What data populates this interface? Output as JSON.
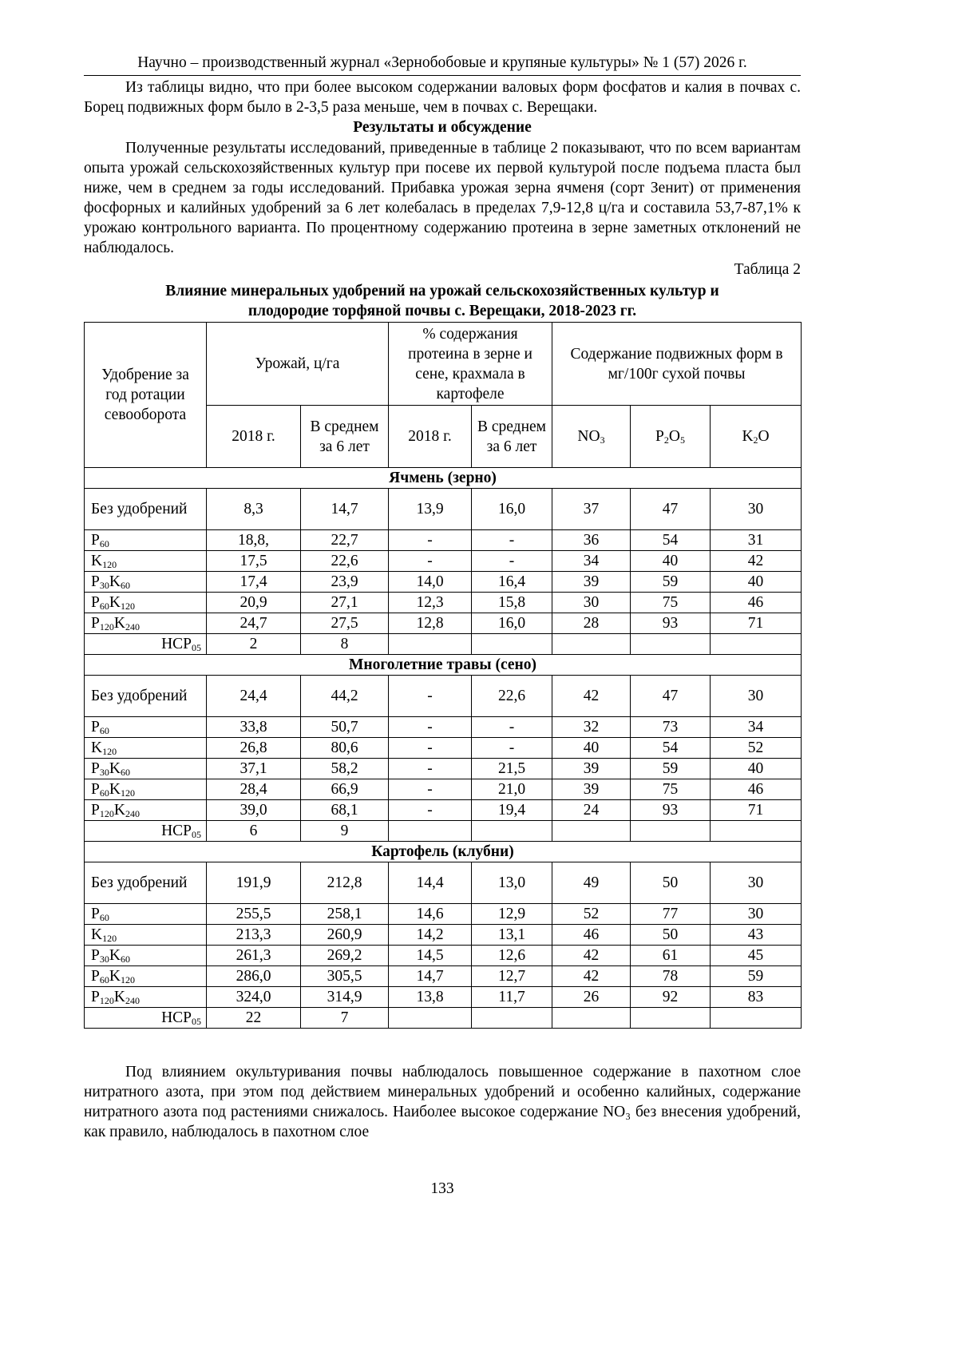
{
  "header": "Научно – производственный журнал «Зернобобовые и крупяные культуры» № 1 (57) 2026 г.",
  "intro": "Из таблицы видно, что при более высоком содержании валовых форм фосфатов и калия в почвах с. Борец подвижных форм было в 2-3,5 раза меньше, чем в почвах с. Верещаки.",
  "section_title": "Результаты и обсуждение",
  "results_para": "Полученные результаты исследований, приведенные в таблице 2 показывают, что по всем вариантам опыта урожай сельскохозяйственных культур при посеве их первой культурой после подъема пласта был ниже, чем в среднем за годы исследований. Прибавка урожая зерна ячменя (сорт Зенит) от применения фосфорных и калийных удобрений за 6 лет колебалась в пределах 7,9-12,8 ц/га и составила 53,7-87,1% к урожаю контрольного варианта. По процентному содержанию протеина в зерне заметных отклонений не наблюдалось.",
  "table_label": "Таблица 2",
  "table_title_1": "Влияние минеральных удобрений на урожай сельскохозяйственных культур и",
  "table_title_2": "плодородие торфяной почвы с. Верещаки, 2018-2023 гг.",
  "table": {
    "h_fert": "Удобрение за год ротации севооборота",
    "h_yield": "Урожай, ц/га",
    "h_protein": "% содержания протеина в зерне и сене, крахмала в картофеле",
    "h_mobile": "Содержание подвижных форм в мг/100г сухой почвы",
    "h_2018": "2018 г.",
    "h_avg": "В среднем за 6 лет",
    "h_no3": [
      [
        "NO",
        ""
      ],
      [
        "3",
        "s"
      ]
    ],
    "h_p2o5": [
      [
        "P",
        ""
      ],
      [
        "2",
        "s"
      ],
      [
        "O",
        ""
      ],
      [
        "5",
        "s"
      ]
    ],
    "h_k2o": [
      [
        "K",
        ""
      ],
      [
        "2",
        "s"
      ],
      [
        "O",
        ""
      ]
    ],
    "sections": [
      {
        "title": "Ячмень (зерно)",
        "rows": [
          {
            "name": [
              [
                "Без удобрений",
                ""
              ]
            ],
            "v": [
              "8,3",
              "14,7",
              "13,9",
              "16,0",
              "37",
              "47",
              "30"
            ]
          },
          {
            "name": [
              [
                "P",
                ""
              ],
              [
                "60",
                "s"
              ]
            ],
            "v": [
              "18,8,",
              "22,7",
              "-",
              "-",
              "36",
              "54",
              "31"
            ]
          },
          {
            "name": [
              [
                "K",
                ""
              ],
              [
                "120",
                "s"
              ]
            ],
            "v": [
              "17,5",
              "22,6",
              "-",
              "-",
              "34",
              "40",
              "42"
            ]
          },
          {
            "name": [
              [
                "P",
                ""
              ],
              [
                "30",
                "s"
              ],
              [
                "K",
                ""
              ],
              [
                "60",
                "s"
              ]
            ],
            "v": [
              "17,4",
              "23,9",
              "14,0",
              "16,4",
              "39",
              "59",
              "40"
            ]
          },
          {
            "name": [
              [
                "P",
                ""
              ],
              [
                "60",
                "s"
              ],
              [
                "K",
                ""
              ],
              [
                "120",
                "s"
              ]
            ],
            "v": [
              "20,9",
              "27,1",
              "12,3",
              "15,8",
              "30",
              "75",
              "46"
            ]
          },
          {
            "name": [
              [
                "P",
                ""
              ],
              [
                "120",
                "s"
              ],
              [
                "K",
                ""
              ],
              [
                "240",
                "s"
              ]
            ],
            "v": [
              "24,7",
              "27,5",
              "12,8",
              "16,0",
              "28",
              "93",
              "71"
            ]
          },
          {
            "ncp": true,
            "name": [
              [
                "НСР",
                ""
              ],
              [
                "05",
                "s"
              ]
            ],
            "v": [
              "2",
              "8",
              "",
              "",
              "",
              "",
              ""
            ]
          }
        ]
      },
      {
        "title": "Многолетние травы (сено)",
        "rows": [
          {
            "name": [
              [
                "Без удобрений",
                ""
              ]
            ],
            "v": [
              "24,4",
              "44,2",
              "-",
              "22,6",
              "42",
              "47",
              "30"
            ]
          },
          {
            "name": [
              [
                "P",
                ""
              ],
              [
                "60",
                "s"
              ]
            ],
            "v": [
              "33,8",
              "50,7",
              "-",
              "-",
              "32",
              "73",
              "34"
            ]
          },
          {
            "name": [
              [
                "K",
                ""
              ],
              [
                "120",
                "s"
              ]
            ],
            "v": [
              "26,8",
              "80,6",
              "-",
              "-",
              "40",
              "54",
              "52"
            ]
          },
          {
            "name": [
              [
                "P",
                ""
              ],
              [
                "30",
                "s"
              ],
              [
                "K",
                ""
              ],
              [
                "60",
                "s"
              ]
            ],
            "v": [
              "37,1",
              "58,2",
              "-",
              "21,5",
              "39",
              "59",
              "40"
            ]
          },
          {
            "name": [
              [
                "P",
                ""
              ],
              [
                "60",
                "s"
              ],
              [
                "K",
                ""
              ],
              [
                "120",
                "s"
              ]
            ],
            "v": [
              "28,4",
              "66,9",
              "-",
              "21,0",
              "39",
              "75",
              "46"
            ]
          },
          {
            "name": [
              [
                "P",
                ""
              ],
              [
                "120",
                "s"
              ],
              [
                "K",
                ""
              ],
              [
                "240",
                "s"
              ]
            ],
            "v": [
              "39,0",
              "68,1",
              "-",
              "19,4",
              "24",
              "93",
              "71"
            ]
          },
          {
            "ncp": true,
            "name": [
              [
                "НСР",
                ""
              ],
              [
                "05",
                "s"
              ]
            ],
            "v": [
              "6",
              "9",
              "",
              "",
              "",
              "",
              ""
            ]
          }
        ]
      },
      {
        "title": "Картофель (клубни)",
        "rows": [
          {
            "name": [
              [
                "Без удобрений",
                ""
              ]
            ],
            "v": [
              "191,9",
              "212,8",
              "14,4",
              "13,0",
              "49",
              "50",
              "30"
            ]
          },
          {
            "name": [
              [
                "P",
                ""
              ],
              [
                "60",
                "s"
              ]
            ],
            "v": [
              "255,5",
              "258,1",
              "14,6",
              "12,9",
              "52",
              "77",
              "30"
            ]
          },
          {
            "name": [
              [
                "K",
                ""
              ],
              [
                "120",
                "s"
              ]
            ],
            "v": [
              "213,3",
              "260,9",
              "14,2",
              "13,1",
              "46",
              "50",
              "43"
            ]
          },
          {
            "name": [
              [
                "P",
                ""
              ],
              [
                "30",
                "s"
              ],
              [
                "K",
                ""
              ],
              [
                "60",
                "s"
              ]
            ],
            "v": [
              "261,3",
              "269,2",
              "14,5",
              "12,6",
              "42",
              "61",
              "45"
            ]
          },
          {
            "name": [
              [
                "P",
                ""
              ],
              [
                "60",
                "s"
              ],
              [
                "K",
                ""
              ],
              [
                "120",
                "s"
              ]
            ],
            "v": [
              "286,0",
              "305,5",
              "14,7",
              "12,7",
              "42",
              "78",
              "59"
            ]
          },
          {
            "name": [
              [
                "P",
                ""
              ],
              [
                "120",
                "s"
              ],
              [
                "K",
                ""
              ],
              [
                "240",
                "s"
              ]
            ],
            "v": [
              "324,0",
              "314,9",
              "13,8",
              "11,7",
              "26",
              "92",
              "83"
            ]
          },
          {
            "ncp": true,
            "name": [
              [
                "НСР",
                ""
              ],
              [
                "05",
                "s"
              ]
            ],
            "v": [
              "22",
              "7",
              "",
              "",
              "",
              "",
              ""
            ]
          }
        ]
      }
    ]
  },
  "closing_para": "Под влиянием окультуривания почвы наблюдалось повышенное содержание в пахотном слое нитратного азота, при этом под действием минеральных удобрений и особенно калийных, содержание нитратного азота под растениями снижалось. Наиболее высокое содержание NO₃ без внесения удобрений, как правило, наблюдалось в пахотном слое",
  "page_number": "133"
}
